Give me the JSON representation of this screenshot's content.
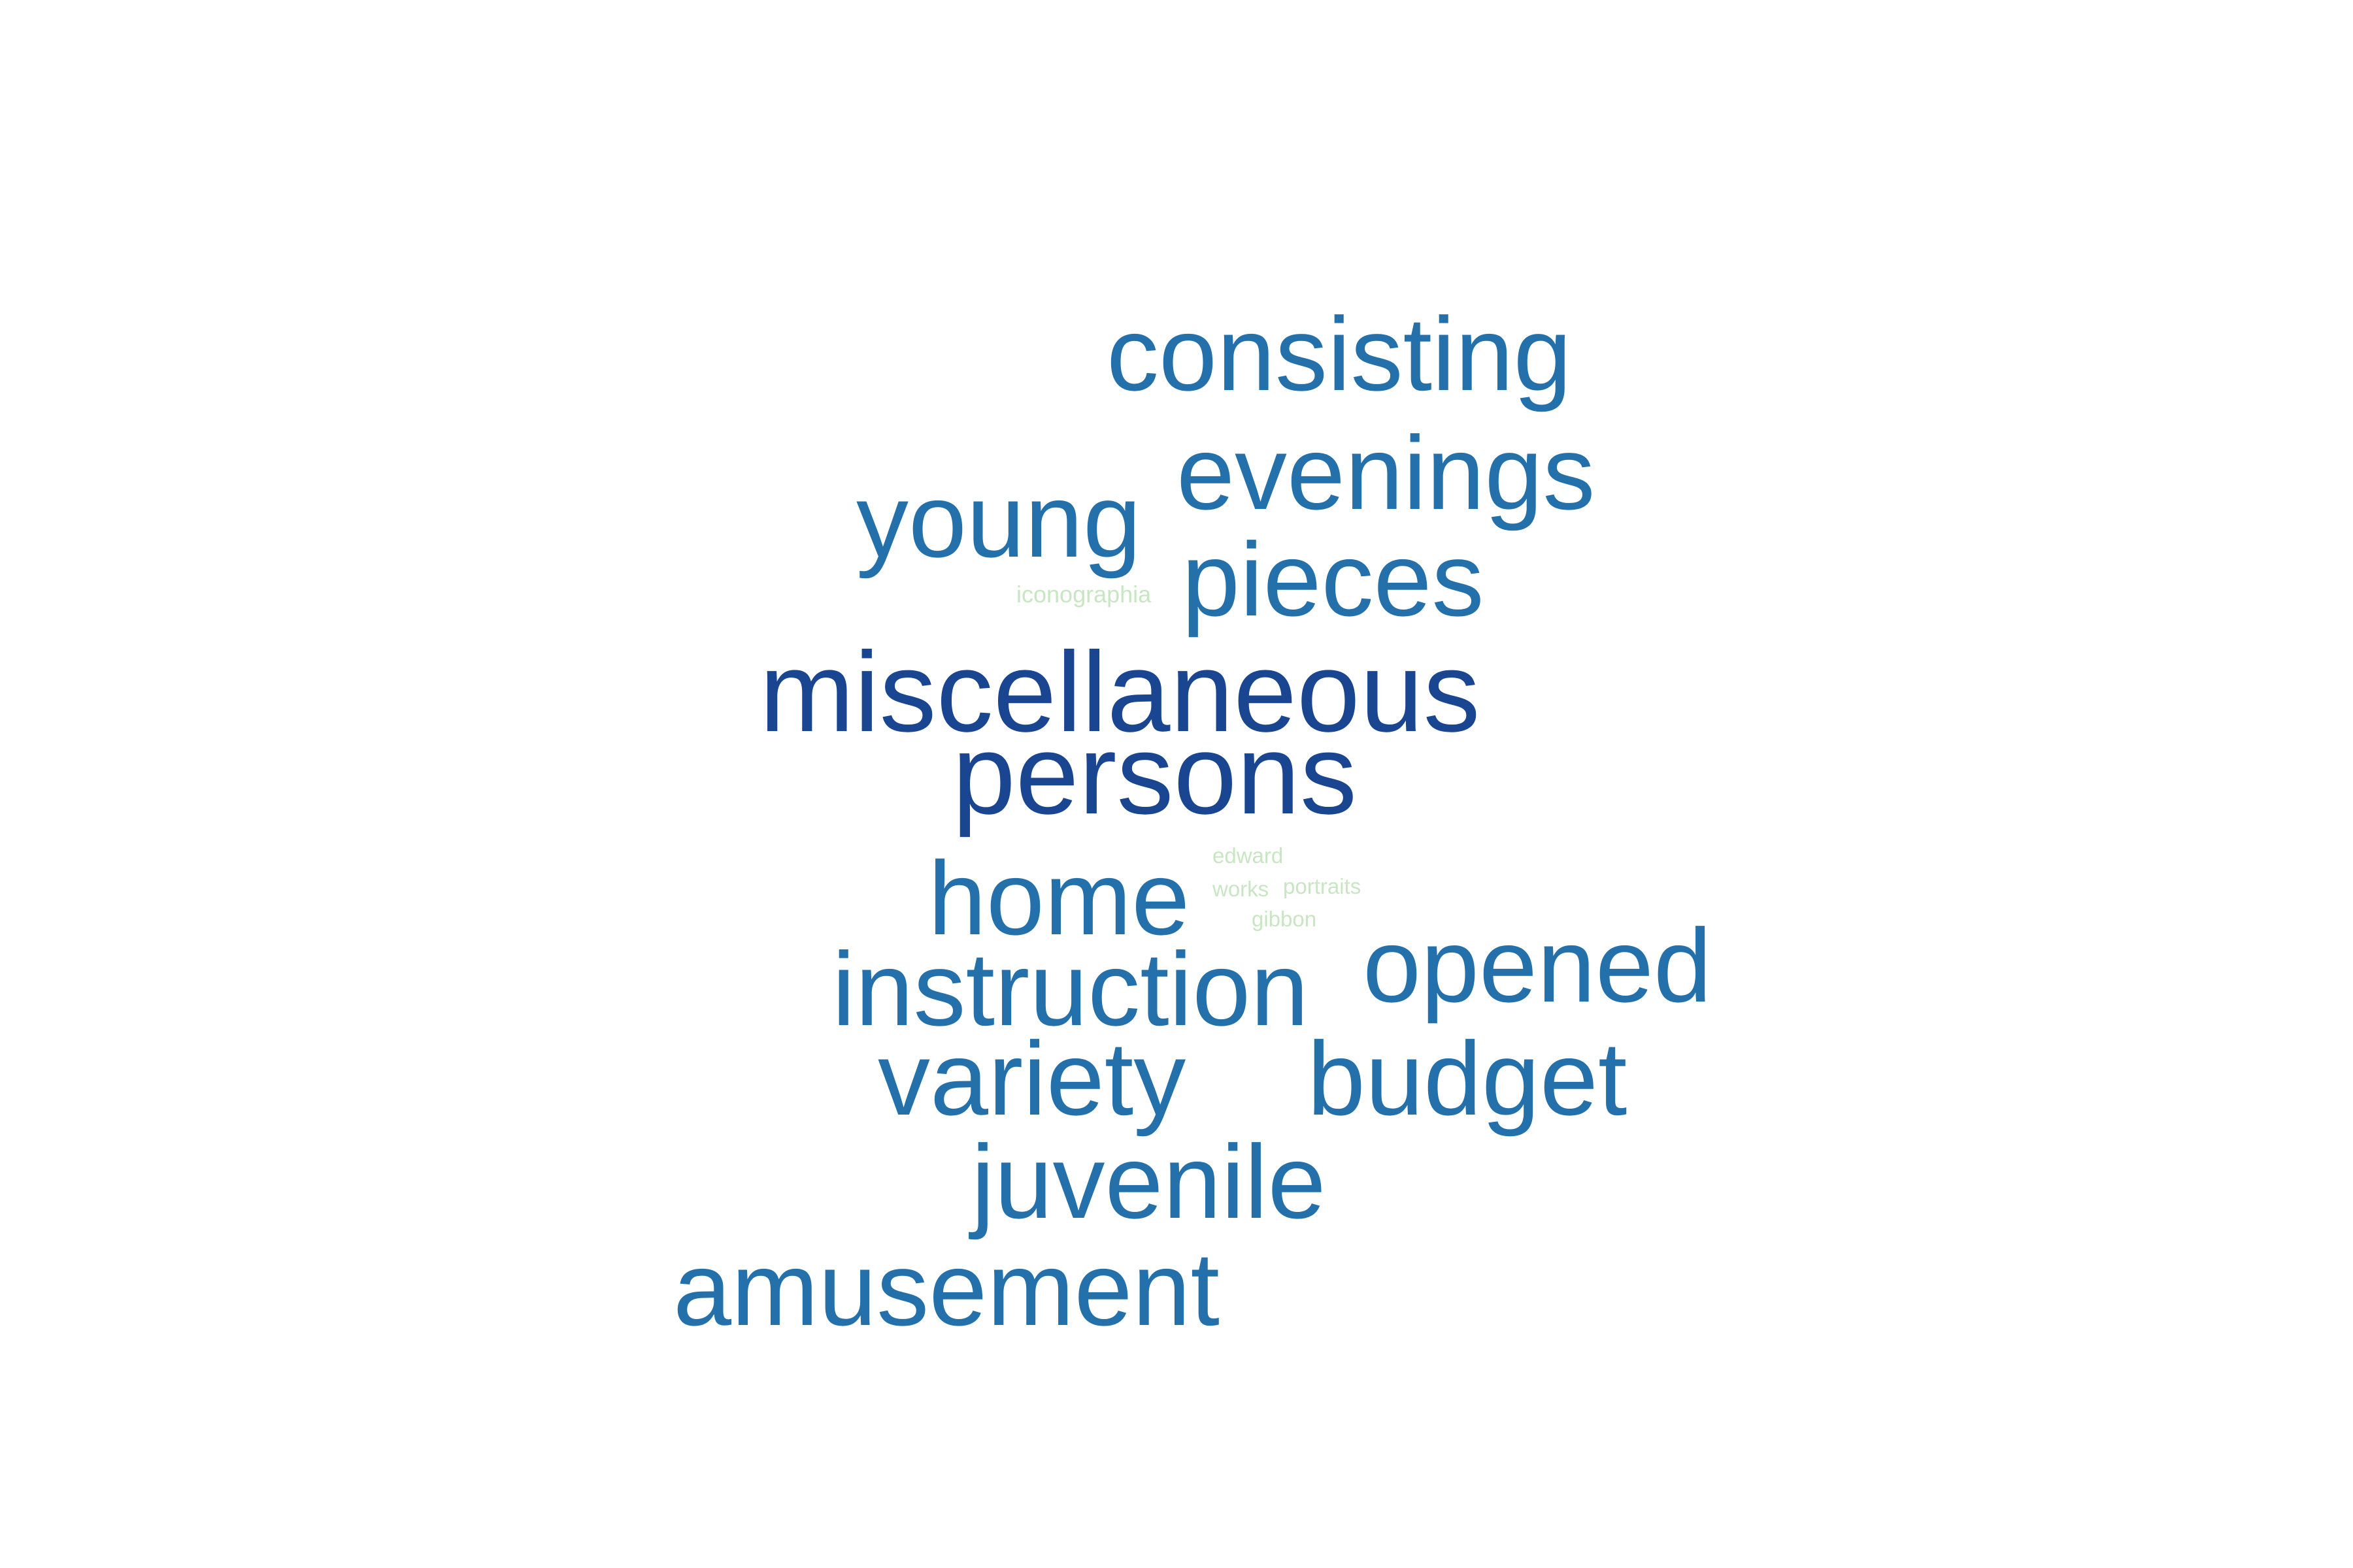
{
  "words": [
    {
      "text": "consisting",
      "weight": "medium",
      "color": "#2470ab"
    },
    {
      "text": "evenings",
      "weight": "medium",
      "color": "#2470ab"
    },
    {
      "text": "young",
      "weight": "medium",
      "color": "#2470ab"
    },
    {
      "text": "pieces",
      "weight": "medium",
      "color": "#2470ab"
    },
    {
      "text": "iconographia",
      "weight": "minor",
      "color": "#c8e6c3"
    },
    {
      "text": "miscellaneous",
      "weight": "major",
      "color": "#1a4591"
    },
    {
      "text": "persons",
      "weight": "major",
      "color": "#1a4591"
    },
    {
      "text": "edward",
      "weight": "minor",
      "color": "#c8e6c3"
    },
    {
      "text": "home",
      "weight": "medium",
      "color": "#2470ab"
    },
    {
      "text": "works",
      "weight": "minor",
      "color": "#c8e6c3"
    },
    {
      "text": "portraits",
      "weight": "minor",
      "color": "#c8e6c3"
    },
    {
      "text": "gibbon",
      "weight": "minor",
      "color": "#c8e6c3"
    },
    {
      "text": "instruction",
      "weight": "medium",
      "color": "#2470ab"
    },
    {
      "text": "opened",
      "weight": "medium",
      "color": "#2470ab"
    },
    {
      "text": "variety",
      "weight": "medium",
      "color": "#2470ab"
    },
    {
      "text": "budget",
      "weight": "medium",
      "color": "#2470ab"
    },
    {
      "text": "juvenile",
      "weight": "medium",
      "color": "#2470ab"
    },
    {
      "text": "amusement",
      "weight": "medium",
      "color": "#2470ab"
    }
  ]
}
